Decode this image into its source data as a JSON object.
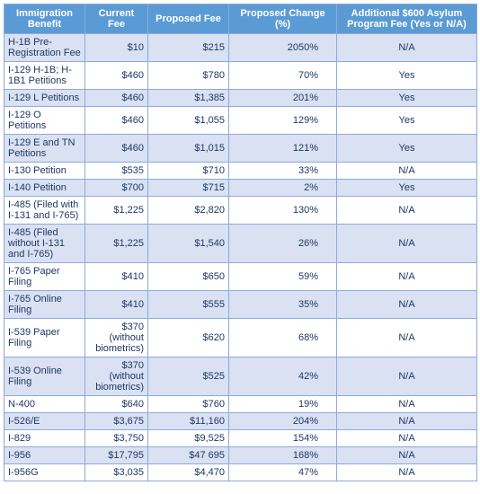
{
  "table": {
    "headers": [
      "Immigration Benefit",
      "Current Fee",
      "Proposed Fee",
      "Proposed Change (%)",
      "Additional $600 Asylum Program Fee (Yes or N/A)"
    ],
    "rows": [
      {
        "benefit": "H-1B Pre-Registration Fee",
        "current": "$10",
        "proposed": "$215",
        "change": "2050%",
        "asylum": "N/A",
        "band": true
      },
      {
        "benefit": "I-129 H-1B; H-1B1 Petitions",
        "current": "$460",
        "proposed": "$780",
        "change": "70%",
        "asylum": "Yes",
        "band": false
      },
      {
        "benefit": "I-129 L Petitions",
        "current": "$460",
        "proposed": "$1,385",
        "change": "201%",
        "asylum": "Yes",
        "band": true
      },
      {
        "benefit": "I-129 O Petitions",
        "current": "$460",
        "proposed": "$1,055",
        "change": "129%",
        "asylum": "Yes",
        "band": false
      },
      {
        "benefit": "I-129 E and TN Petitions",
        "current": "$460",
        "proposed": "$1,015",
        "change": "121%",
        "asylum": "Yes",
        "band": true
      },
      {
        "benefit": "I-130 Petition",
        "current": "$535",
        "proposed": "$710",
        "change": "33%",
        "asylum": "N/A",
        "band": false
      },
      {
        "benefit": "I-140 Petition",
        "current": "$700",
        "proposed": "$715",
        "change": "2%",
        "asylum": "Yes",
        "band": true
      },
      {
        "benefit": "I-485 (Filed with I-131 and I-765)",
        "current": "$1,225",
        "proposed": "$2,820",
        "change": "130%",
        "asylum": "N/A",
        "band": false
      },
      {
        "benefit": "I-485 (Filed without I-131 and I-765)",
        "current": "$1,225",
        "proposed": "$1,540",
        "change": "26%",
        "asylum": "N/A",
        "band": true
      },
      {
        "benefit": "I-765 Paper Filing",
        "current": "$410",
        "proposed": "$650",
        "change": "59%",
        "asylum": "N/A",
        "band": false
      },
      {
        "benefit": "I-765 Online Filing",
        "current": "$410",
        "proposed": "$555",
        "change": "35%",
        "asylum": "N/A",
        "band": true
      },
      {
        "benefit": "I-539 Paper Filing",
        "current": "$370 (without biometrics)",
        "proposed": "$620",
        "change": "68%",
        "asylum": "N/A",
        "band": false
      },
      {
        "benefit": "I-539 Online Filing",
        "current": "$370 (without biometrics)",
        "proposed": "$525",
        "change": "42%",
        "asylum": "N/A",
        "band": true
      },
      {
        "benefit": "N-400",
        "current": "$640",
        "proposed": "$760",
        "change": "19%",
        "asylum": "N/A",
        "band": false
      },
      {
        "benefit": "I-526/E",
        "current": "$3,675",
        "proposed": "$11,160",
        "change": "204%",
        "asylum": "N/A",
        "band": true
      },
      {
        "benefit": "I-829",
        "current": "$3,750",
        "proposed": "$9,525",
        "change": "154%",
        "asylum": "N/A",
        "band": false
      },
      {
        "benefit": "I-956",
        "current": "$17,795",
        "proposed": "$47 695",
        "change": "168%",
        "asylum": "N/A",
        "band": true
      },
      {
        "benefit": "I-956G",
        "current": "$3,035",
        "proposed": "$4,470",
        "change": "47%",
        "asylum": "N/A",
        "band": false
      }
    ]
  }
}
